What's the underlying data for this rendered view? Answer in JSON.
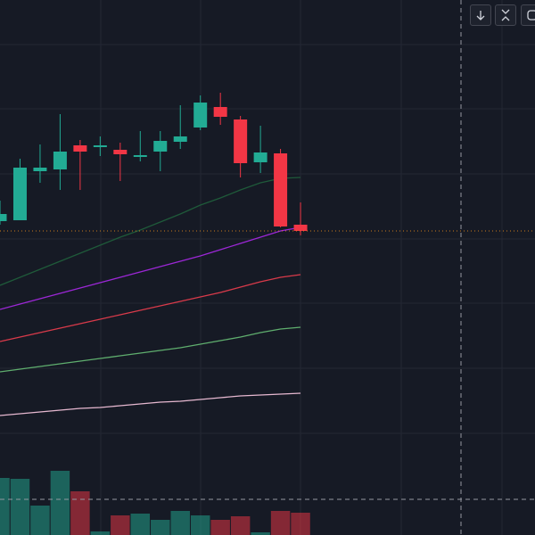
{
  "chart_data": {
    "type": "candlestick",
    "open": [
      352,
      353,
      408,
      410,
      437,
      435,
      432,
      424,
      430,
      441,
      457,
      480,
      466,
      418,
      428,
      348
    ],
    "high": [
      375,
      422,
      438,
      472,
      443,
      447,
      440,
      453,
      453,
      482,
      493,
      496,
      470,
      459,
      433,
      373
    ],
    "low": [
      348,
      353,
      395,
      387,
      387,
      425,
      397,
      419,
      408,
      433,
      454,
      460,
      401,
      406,
      345,
      336
    ],
    "close": [
      360,
      412,
      412,
      430,
      430,
      437,
      427,
      426,
      442,
      447,
      485,
      469,
      417,
      429,
      346,
      341
    ],
    "volume": [
      64,
      63,
      33,
      72,
      49,
      4,
      22,
      24,
      17,
      27,
      22,
      17,
      21,
      3,
      27,
      25
    ],
    "ylim": [
      0,
      600
    ],
    "up_color": "#22ab94",
    "down_color": "#f23645",
    "grid": true,
    "series": [
      {
        "color": "#1f5a3a",
        "values": [
          280,
          289,
          298,
          307,
          316,
          325,
          334,
          342,
          351,
          360,
          370,
          378,
          387,
          395,
          400,
          401
        ]
      },
      {
        "color": "#9c27d6",
        "values": [
          253,
          259,
          265,
          271,
          277,
          283,
          289,
          295,
          301,
          307,
          313,
          320,
          327,
          334,
          341,
          345
        ]
      },
      {
        "color": "#d83a4a",
        "values": [
          217,
          222,
          227,
          232,
          237,
          242,
          247,
          252,
          257,
          262,
          267,
          272,
          278,
          284,
          289,
          292
        ]
      },
      {
        "color": "#5fae6e",
        "values": [
          183,
          186,
          189,
          192,
          195,
          198,
          201,
          204,
          207,
          210,
          214,
          218,
          222,
          227,
          231,
          233
        ]
      },
      {
        "color": "#e6b8d0",
        "values": [
          134,
          136,
          138,
          140,
          142,
          143,
          145,
          147,
          149,
          150,
          152,
          154,
          156,
          157,
          158,
          159
        ]
      }
    ]
  }
}
